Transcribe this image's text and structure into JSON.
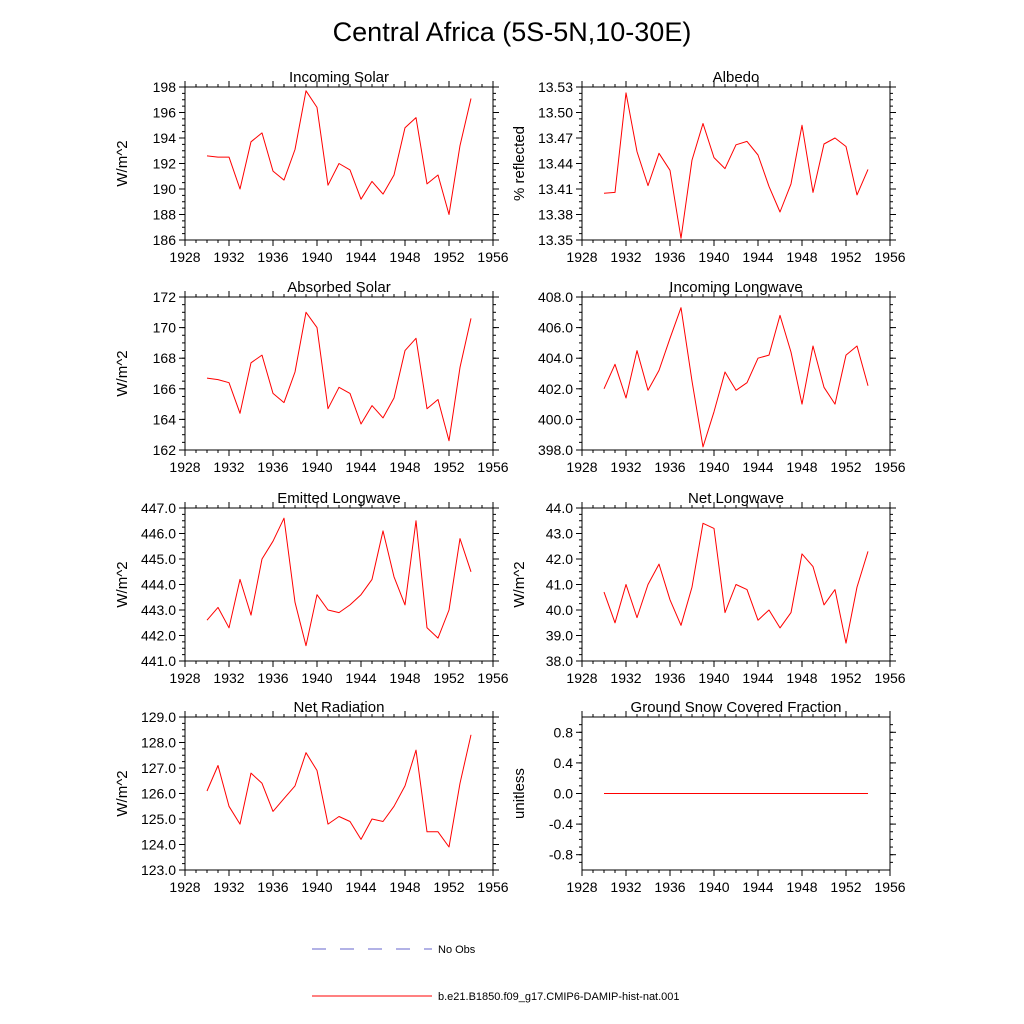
{
  "figure_title": "Central Africa (5S-5N,10-30E)",
  "colors": {
    "model_line": "#ff0000",
    "obs_line": "#6666cc",
    "axis": "#000000"
  },
  "legend": {
    "obs_label": "No Obs",
    "model_label": "b.e21.B1850.f09_g17.CMIP6-DAMIP-hist-nat.001"
  },
  "chart_data": [
    {
      "type": "line",
      "title": "Incoming Solar",
      "ylabel": "W/m^2",
      "xlim": [
        1928,
        1956
      ],
      "ylim": [
        186,
        198
      ],
      "xticks": [
        "1928",
        "1932",
        "1936",
        "1940",
        "1944",
        "1948",
        "1952",
        "1956"
      ],
      "yticks": [
        "186",
        "188",
        "190",
        "192",
        "194",
        "196",
        "198"
      ],
      "grid": false,
      "series": [
        {
          "x": [
            1930,
            1931,
            1932,
            1933,
            1934,
            1935,
            1936,
            1937,
            1938,
            1939,
            1940,
            1941,
            1942,
            1943,
            1944,
            1945,
            1946,
            1947,
            1948,
            1949,
            1950,
            1951,
            1952,
            1953,
            1954
          ],
          "values": [
            192.6,
            192.5,
            192.5,
            190.0,
            193.7,
            194.4,
            191.4,
            190.7,
            193.1,
            197.7,
            196.4,
            190.3,
            192.0,
            191.5,
            189.2,
            190.6,
            189.6,
            191.1,
            194.8,
            195.6,
            190.4,
            191.1,
            188.0,
            193.4,
            197.1
          ]
        }
      ]
    },
    {
      "type": "line",
      "title": "Albedo",
      "ylabel": "% reflected",
      "xlim": [
        1928,
        1956
      ],
      "ylim": [
        13.35,
        13.53
      ],
      "xticks": [
        "1928",
        "1932",
        "1936",
        "1940",
        "1944",
        "1948",
        "1952",
        "1956"
      ],
      "yticks": [
        "13.35",
        "13.38",
        "13.41",
        "13.44",
        "13.47",
        "13.50",
        "13.53"
      ],
      "grid": false,
      "series": [
        {
          "x": [
            1930,
            1931,
            1932,
            1933,
            1934,
            1935,
            1936,
            1937,
            1938,
            1939,
            1940,
            1941,
            1942,
            1943,
            1944,
            1945,
            1946,
            1947,
            1948,
            1949,
            1950,
            1951,
            1952,
            1953,
            1954
          ],
          "values": [
            13.405,
            13.406,
            13.523,
            13.454,
            13.414,
            13.452,
            13.432,
            13.352,
            13.444,
            13.487,
            13.447,
            13.434,
            13.462,
            13.466,
            13.45,
            13.413,
            13.383,
            13.416,
            13.485,
            13.406,
            13.463,
            13.47,
            13.46,
            13.403,
            13.433
          ]
        }
      ]
    },
    {
      "type": "line",
      "title": "Absorbed Solar",
      "ylabel": "W/m^2",
      "xlim": [
        1928,
        1956
      ],
      "ylim": [
        162,
        172
      ],
      "xticks": [
        "1928",
        "1932",
        "1936",
        "1940",
        "1944",
        "1948",
        "1952",
        "1956"
      ],
      "yticks": [
        "162",
        "164",
        "166",
        "168",
        "170",
        "172"
      ],
      "grid": false,
      "series": [
        {
          "x": [
            1930,
            1931,
            1932,
            1933,
            1934,
            1935,
            1936,
            1937,
            1938,
            1939,
            1940,
            1941,
            1942,
            1943,
            1944,
            1945,
            1946,
            1947,
            1948,
            1949,
            1950,
            1951,
            1952,
            1953,
            1954
          ],
          "values": [
            166.7,
            166.6,
            166.4,
            164.4,
            167.7,
            168.2,
            165.7,
            165.1,
            167.1,
            171.0,
            170.0,
            164.7,
            166.1,
            165.7,
            163.7,
            164.9,
            164.1,
            165.4,
            168.5,
            169.3,
            164.7,
            165.3,
            162.6,
            167.4,
            170.6
          ]
        }
      ]
    },
    {
      "type": "line",
      "title": "Incoming Longwave",
      "ylabel": "",
      "xlim": [
        1928,
        1956
      ],
      "ylim": [
        398.0,
        408.0
      ],
      "xticks": [
        "1928",
        "1932",
        "1936",
        "1940",
        "1944",
        "1948",
        "1952",
        "1956"
      ],
      "yticks": [
        "398.0",
        "400.0",
        "402.0",
        "404.0",
        "406.0",
        "408.0"
      ],
      "grid": false,
      "series": [
        {
          "x": [
            1930,
            1931,
            1932,
            1933,
            1934,
            1935,
            1936,
            1937,
            1938,
            1939,
            1940,
            1941,
            1942,
            1943,
            1944,
            1945,
            1946,
            1947,
            1948,
            1949,
            1950,
            1951,
            1952,
            1953,
            1954
          ],
          "values": [
            402.0,
            403.6,
            401.4,
            404.5,
            401.9,
            403.2,
            405.3,
            407.3,
            402.5,
            398.2,
            400.5,
            403.1,
            401.9,
            402.4,
            404.0,
            404.2,
            406.8,
            404.4,
            401.0,
            404.8,
            402.1,
            401.0,
            404.2,
            404.8,
            402.2
          ]
        }
      ]
    },
    {
      "type": "line",
      "title": "Emitted Longwave",
      "ylabel": "W/m^2",
      "xlim": [
        1928,
        1956
      ],
      "ylim": [
        441.0,
        447.0
      ],
      "xticks": [
        "1928",
        "1932",
        "1936",
        "1940",
        "1944",
        "1948",
        "1952",
        "1956"
      ],
      "yticks": [
        "441.0",
        "442.0",
        "443.0",
        "444.0",
        "445.0",
        "446.0",
        "447.0"
      ],
      "grid": false,
      "series": [
        {
          "x": [
            1930,
            1931,
            1932,
            1933,
            1934,
            1935,
            1936,
            1937,
            1938,
            1939,
            1940,
            1941,
            1942,
            1943,
            1944,
            1945,
            1946,
            1947,
            1948,
            1949,
            1950,
            1951,
            1952,
            1953,
            1954
          ],
          "values": [
            442.6,
            443.1,
            442.3,
            444.2,
            442.8,
            445.0,
            445.7,
            446.6,
            443.3,
            441.6,
            443.6,
            443.0,
            442.9,
            443.2,
            443.6,
            444.2,
            446.1,
            444.3,
            443.2,
            446.5,
            442.3,
            441.9,
            443.0,
            445.8,
            444.5
          ]
        }
      ]
    },
    {
      "type": "line",
      "title": "Net Longwave",
      "ylabel": "W/m^2",
      "xlim": [
        1928,
        1956
      ],
      "ylim": [
        38.0,
        44.0
      ],
      "xticks": [
        "1928",
        "1932",
        "1936",
        "1940",
        "1944",
        "1948",
        "1952",
        "1956"
      ],
      "yticks": [
        "38.0",
        "39.0",
        "40.0",
        "41.0",
        "42.0",
        "43.0",
        "44.0"
      ],
      "grid": false,
      "series": [
        {
          "x": [
            1930,
            1931,
            1932,
            1933,
            1934,
            1935,
            1936,
            1937,
            1938,
            1939,
            1940,
            1941,
            1942,
            1943,
            1944,
            1945,
            1946,
            1947,
            1948,
            1949,
            1950,
            1951,
            1952,
            1953,
            1954
          ],
          "values": [
            40.7,
            39.5,
            41.0,
            39.7,
            41.0,
            41.8,
            40.4,
            39.4,
            40.9,
            43.4,
            43.2,
            39.9,
            41.0,
            40.8,
            39.6,
            40.0,
            39.3,
            39.9,
            42.2,
            41.7,
            40.2,
            40.8,
            38.7,
            40.9,
            42.3
          ]
        }
      ]
    },
    {
      "type": "line",
      "title": "Net Radiation",
      "ylabel": "W/m^2",
      "xlim": [
        1928,
        1956
      ],
      "ylim": [
        123.0,
        129.0
      ],
      "xticks": [
        "1928",
        "1932",
        "1936",
        "1940",
        "1944",
        "1948",
        "1952",
        "1956"
      ],
      "yticks": [
        "123.0",
        "124.0",
        "125.0",
        "126.0",
        "127.0",
        "128.0",
        "129.0"
      ],
      "grid": false,
      "series": [
        {
          "x": [
            1930,
            1931,
            1932,
            1933,
            1934,
            1935,
            1936,
            1937,
            1938,
            1939,
            1940,
            1941,
            1942,
            1943,
            1944,
            1945,
            1946,
            1947,
            1948,
            1949,
            1950,
            1951,
            1952,
            1953,
            1954
          ],
          "values": [
            126.1,
            127.1,
            125.5,
            124.8,
            126.8,
            126.4,
            125.3,
            125.8,
            126.3,
            127.6,
            126.9,
            124.8,
            125.1,
            124.9,
            124.2,
            125.0,
            124.9,
            125.5,
            126.3,
            127.7,
            124.5,
            124.5,
            123.9,
            126.4,
            128.3
          ]
        }
      ]
    },
    {
      "type": "line",
      "title": "Ground Snow Covered Fraction",
      "ylabel": "unitless",
      "xlim": [
        1928,
        1956
      ],
      "ylim": [
        -1.0,
        1.0
      ],
      "xticks": [
        "1928",
        "1932",
        "1936",
        "1940",
        "1944",
        "1948",
        "1952",
        "1956"
      ],
      "yticks": [
        "-0.8",
        "-0.4",
        "0.0",
        "0.4",
        "0.8"
      ],
      "grid": false,
      "series": [
        {
          "x": [
            1930,
            1954
          ],
          "values": [
            0.0,
            0.0
          ]
        }
      ]
    }
  ]
}
